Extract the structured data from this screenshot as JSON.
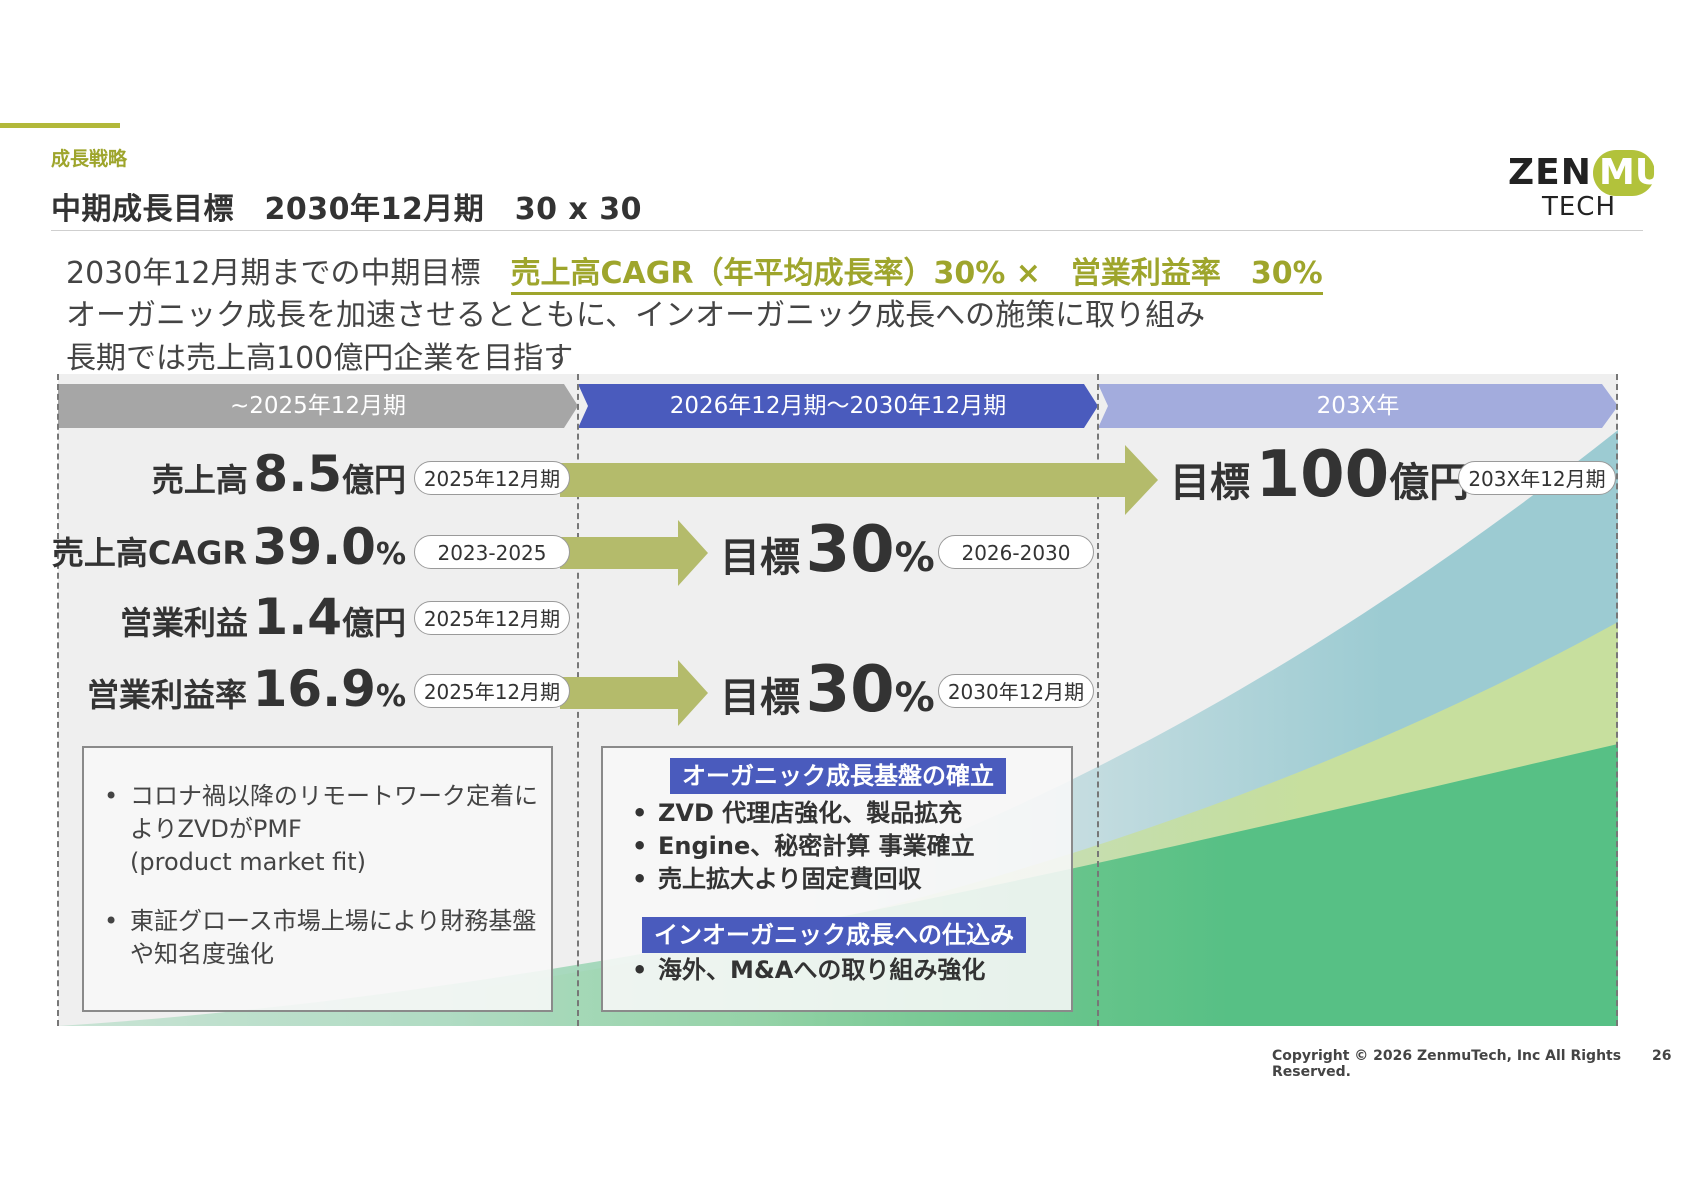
{
  "header": {
    "section_label": "成長戦略",
    "page_title": "中期成長目標　2030年12月期　30 x 30"
  },
  "logo": {
    "top": "ZEN",
    "highlight": "MU",
    "bottom": "TECH"
  },
  "lead": {
    "line1_prefix": "2030年12月期までの中期目標　",
    "line1_highlight": "売上高CAGR（年平均成長率）30% ×　営業利益率　30%",
    "line2": "オーガニック成長を加速させるとともに、インオーガニック成長への施策に取り組み",
    "line3": "長期では売上高100億円企業を目指す"
  },
  "phases": [
    "~2025年12月期",
    "2026年12月期〜2030年12月期",
    "203X年"
  ],
  "metrics": {
    "sales": {
      "label": "売上高",
      "value": "8.5",
      "unit": "億円",
      "period": "2025年12月期"
    },
    "cagr": {
      "label": "売上高CAGR",
      "value": "39.0",
      "unit": "%",
      "period": "2023-2025"
    },
    "op_profit": {
      "label": "営業利益",
      "value": "1.4",
      "unit": "億円",
      "period": "2025年12月期"
    },
    "op_margin": {
      "label": "営業利益率",
      "value": "16.9",
      "unit": "%",
      "period": "2025年12月期"
    }
  },
  "targets": {
    "cagr": {
      "label": "目標",
      "value": "30",
      "unit": "%",
      "period": "2026-2030"
    },
    "op_margin": {
      "label": "目標",
      "value": "30",
      "unit": "%",
      "period": "2030年12月期"
    },
    "sales_long": {
      "label": "目標",
      "value": "100",
      "unit": "億円",
      "period": "203X年12月期"
    }
  },
  "left_notes": [
    "コロナ禍以降のリモートワーク定着によりZVDがPMF\n(product market fit)",
    "東証グロース市場上場により財務基盤や知名度強化"
  ],
  "middle_notes": {
    "organic_title": "オーガニック成長基盤の確立",
    "organic_items": [
      "ZVD 代理店強化、製品拡充",
      "Engine、秘密計算 事業確立",
      "売上拡大より固定費回収"
    ],
    "inorganic_title": "インオーガニック成長への仕込み",
    "inorganic_items": [
      "海外、M&Aへの取り組み強化"
    ]
  },
  "colors": {
    "accent_olive": "#9ea52c",
    "arrow_olive": "#b4bb6b",
    "phase1": "#a6a6a6",
    "phase2": "#4a5bbd",
    "phase3": "#a3acdd",
    "growth_blue": "#9ccbd2",
    "growth_lightgreen": "#c7df9e",
    "growth_green": "#57c085"
  },
  "footer": {
    "copyright": "Copyright © 2026 ZenmuTech, Inc All Rights Reserved.",
    "page_number": "26"
  }
}
